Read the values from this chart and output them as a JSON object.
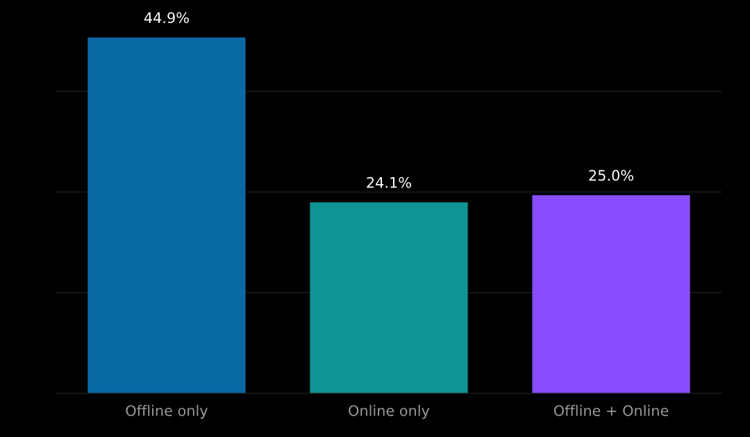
{
  "chart_data": {
    "type": "bar",
    "categories": [
      "Offline only",
      "Online only",
      "Offline + Online"
    ],
    "values": [
      44.9,
      24.1,
      25.0
    ],
    "colors": [
      "#0a6aa6",
      "#0f9494",
      "#8a4cff"
    ],
    "value_labels": [
      "44.9%",
      "24.1%",
      "25.0%"
    ],
    "ylim": [
      0,
      45
    ],
    "yticks": [
      {
        "value": 12.7,
        "label": null
      },
      {
        "value": 25.4,
        "label": null
      },
      {
        "value": 38.1,
        "label": null
      }
    ],
    "tick_labels": "x",
    "grid": "y",
    "legend": false
  }
}
